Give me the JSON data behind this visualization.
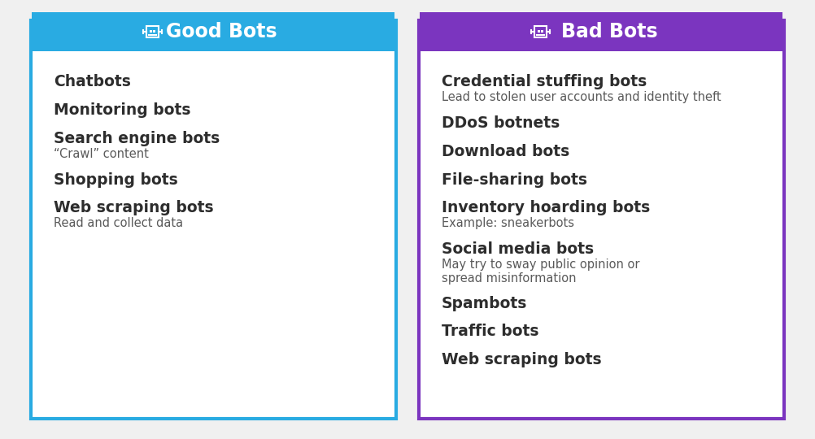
{
  "good_bots": {
    "title": "Good Bots",
    "header_color": "#29ABE2",
    "border_color": "#29ABE2",
    "items": [
      {
        "main": "Chatbots",
        "sub": ""
      },
      {
        "main": "Monitoring bots",
        "sub": ""
      },
      {
        "main": "Search engine bots",
        "sub": "“Crawl” content"
      },
      {
        "main": "Shopping bots",
        "sub": ""
      },
      {
        "main": "Web scraping bots",
        "sub": "Read and collect data"
      }
    ]
  },
  "bad_bots": {
    "title": "Bad Bots",
    "header_color": "#7B35BF",
    "border_color": "#7B35BF",
    "items": [
      {
        "main": "Credential stuffing bots",
        "sub": "Lead to stolen user accounts and identity theft"
      },
      {
        "main": "DDoS botnets",
        "sub": ""
      },
      {
        "main": "Download bots",
        "sub": ""
      },
      {
        "main": "File-sharing bots",
        "sub": ""
      },
      {
        "main": "Inventory hoarding bots",
        "sub": "Example: sneakerbots"
      },
      {
        "main": "Social media bots",
        "sub": "May try to sway public opinion or\nspread misinformation"
      },
      {
        "main": "Spambots",
        "sub": ""
      },
      {
        "main": "Traffic bots",
        "sub": ""
      },
      {
        "main": "Web scraping bots",
        "sub": ""
      }
    ]
  },
  "bg_color": "#f0f0f0",
  "panel_bg": "#ffffff",
  "main_text_color": "#2d2d2d",
  "sub_text_color": "#5a5a5a",
  "main_fontsize": 13.5,
  "sub_fontsize": 10.5,
  "title_fontsize": 17
}
